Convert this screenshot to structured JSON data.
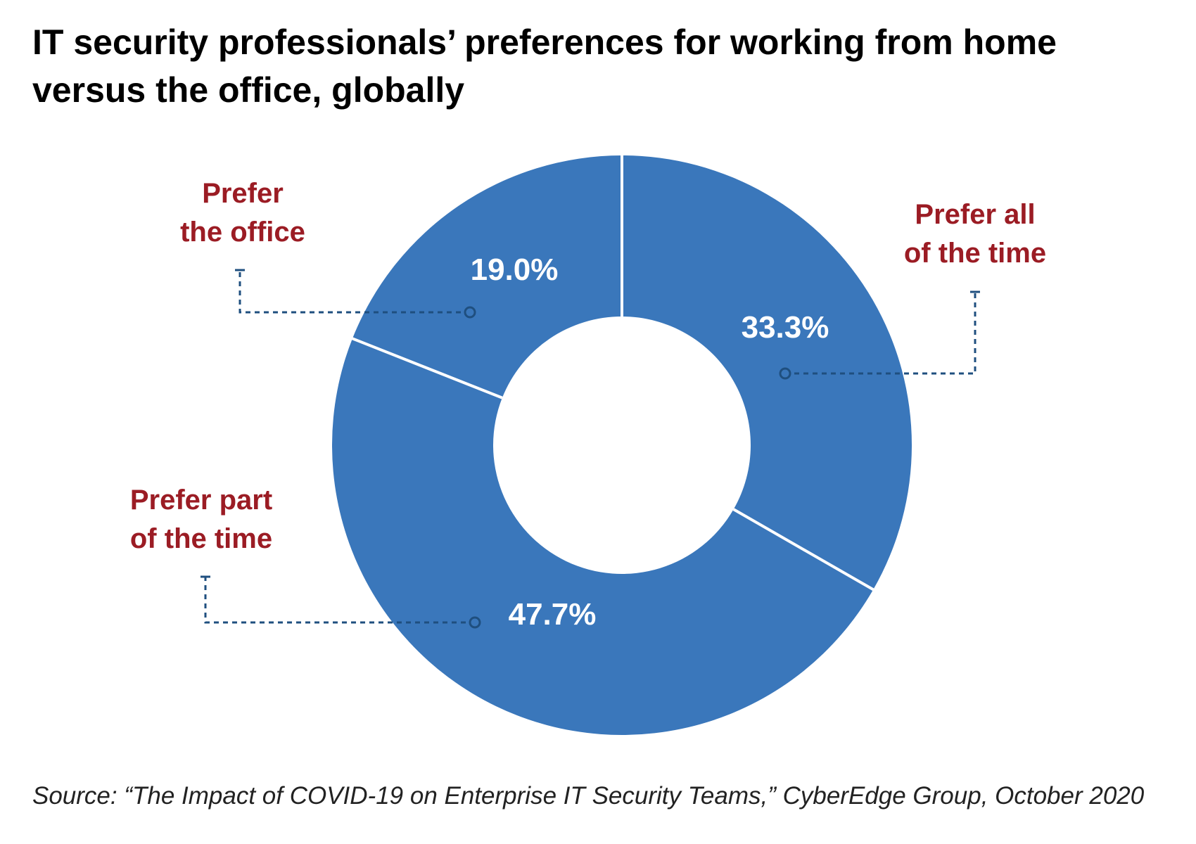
{
  "chart_data": {
    "type": "pie",
    "title": "IT security professionals’ preferences for working from home versus the office, globally",
    "title_lines": [
      "IT security professionals’ preferences for working from home",
      "versus the office, globally"
    ],
    "categories": [
      "Prefer all of the time",
      "Prefer part of the time",
      "Prefer the office"
    ],
    "category_lines": [
      [
        "Prefer all",
        "of the time"
      ],
      [
        "Prefer part",
        "of the time"
      ],
      [
        "Prefer",
        "the office"
      ]
    ],
    "values": [
      33.3,
      47.7,
      19.0
    ],
    "value_labels": [
      "33.3%",
      "47.7%",
      "19.0%"
    ],
    "donut": true,
    "legend": "callouts",
    "source": "Source: “The Impact of COVID-19 on Enterprise IT Security Teams,” CyberEdge Group, October 2020"
  },
  "colors": {
    "slice": "#3a77bb",
    "label": "#9b1c24",
    "leader": "#1f4f7f",
    "separator": "#ffffff",
    "value_text": "#ffffff"
  }
}
